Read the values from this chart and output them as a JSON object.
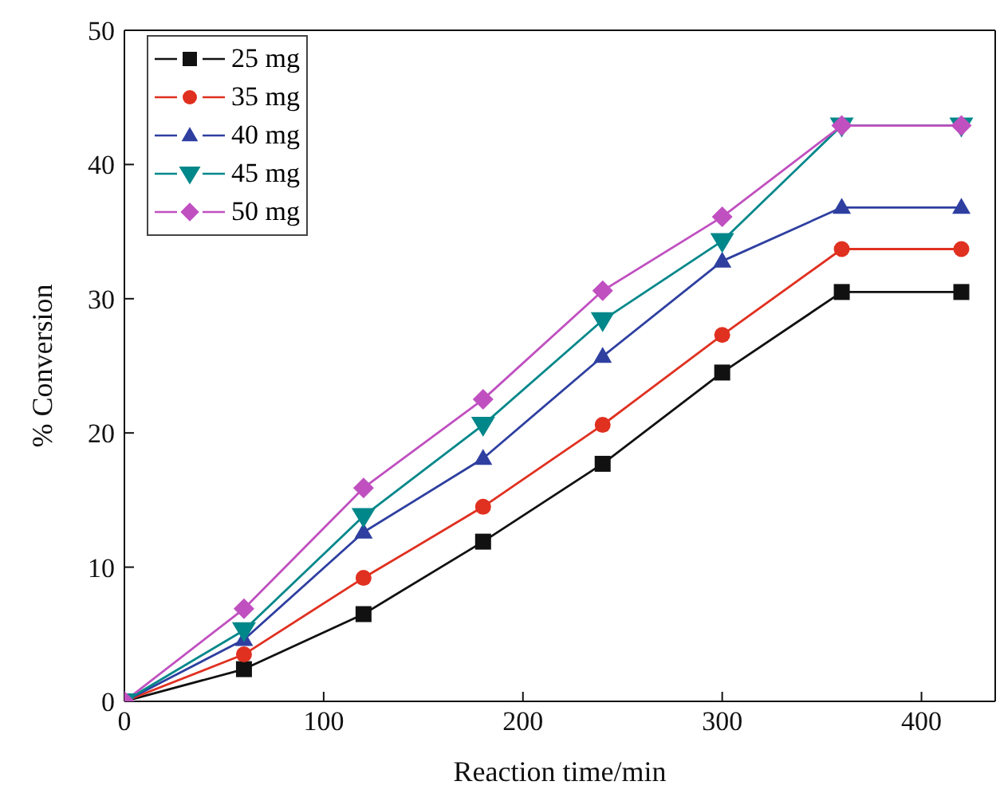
{
  "chart_data": {
    "type": "line",
    "xlabel": "Reaction time/min",
    "ylabel": "% Conversion",
    "x": [
      0,
      60,
      120,
      180,
      240,
      300,
      360,
      420
    ],
    "series": [
      {
        "name": "25 mg",
        "color": "#111111",
        "marker": "square",
        "values": [
          0,
          2.4,
          6.5,
          11.9,
          17.7,
          24.5,
          30.5,
          30.5
        ]
      },
      {
        "name": "35 mg",
        "color": "#e03020",
        "marker": "circle",
        "values": [
          0,
          3.5,
          9.2,
          14.5,
          20.6,
          27.3,
          33.7,
          33.7
        ]
      },
      {
        "name": "40 mg",
        "color": "#2e3fa0",
        "marker": "triangle",
        "values": [
          0,
          4.6,
          12.6,
          18.1,
          25.7,
          32.8,
          36.8,
          36.8
        ]
      },
      {
        "name": "45 mg",
        "color": "#00878a",
        "marker": "triangle-down",
        "values": [
          0,
          5.3,
          13.8,
          20.6,
          28.4,
          34.3,
          42.9,
          42.9
        ]
      },
      {
        "name": "50 mg",
        "color": "#c050c0",
        "marker": "diamond",
        "values": [
          0,
          6.9,
          15.9,
          22.5,
          30.6,
          36.1,
          42.9,
          42.9
        ]
      }
    ],
    "xlim": [
      0,
      437
    ],
    "xticks": [
      0,
      100,
      200,
      300,
      400
    ],
    "ylim": [
      0,
      50
    ],
    "yticks": [
      0,
      10,
      20,
      30,
      40,
      50
    ],
    "grid": false,
    "legend": "top left"
  }
}
